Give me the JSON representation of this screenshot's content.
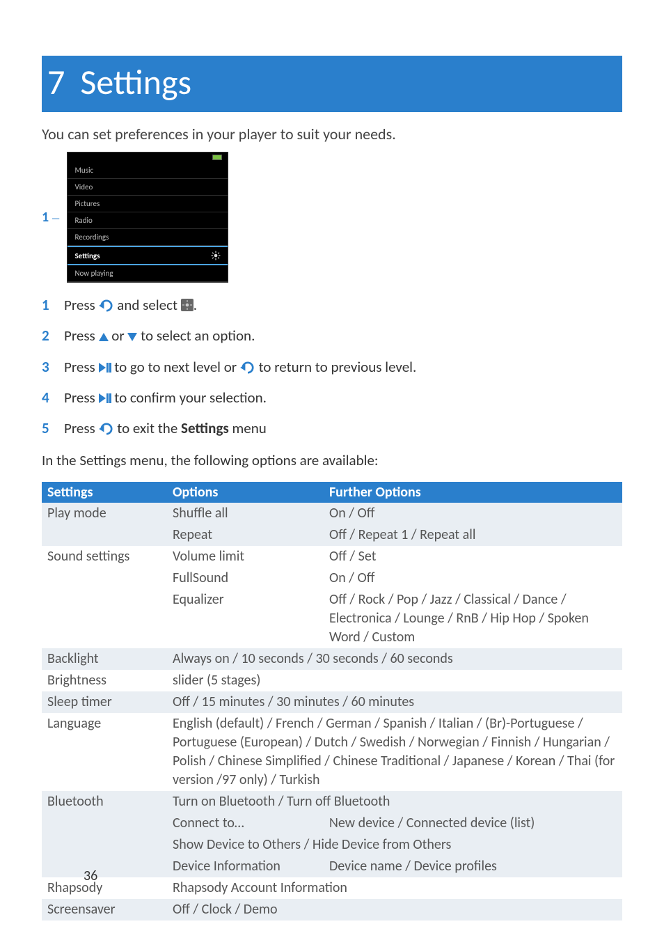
{
  "chapter": {
    "number": "7",
    "title": "Settings"
  },
  "intro": "You can set preferences in your player to suit your needs.",
  "device_menu": {
    "marker": "1",
    "items": [
      "Music",
      "Video",
      "Pictures",
      "Radio",
      "Recordings"
    ],
    "selected": "Settings",
    "after": [
      "Now playing"
    ]
  },
  "steps": [
    {
      "n": "1",
      "pre": "Press ",
      "mid": " and select ",
      "post": "."
    },
    {
      "n": "2",
      "pre": "Press ",
      "mid": " or ",
      "post": " to select an option."
    },
    {
      "n": "3",
      "pre": "Press ",
      "mid": " to go to next level or ",
      "post": " to return to previous level."
    },
    {
      "n": "4",
      "pre": "Press ",
      "post": " to confirm your selection."
    },
    {
      "n": "5",
      "pre": "Press ",
      "mid": " to exit the ",
      "bold": "Settings",
      "post": " menu"
    }
  ],
  "sub_intro": "In the Settings menu, the following options are available:",
  "table": {
    "headers": [
      "Settings",
      "Options",
      "Further Options"
    ],
    "header_bg": "#2a7fcc",
    "header_fg": "#ffffff",
    "shade_bg": "#e9eef3",
    "text_color": "#555555",
    "rows": [
      {
        "shade": true,
        "c1": "Play mode",
        "c2": "Shuffle all",
        "c3": "On / Off"
      },
      {
        "shade": true,
        "c1": "",
        "c2": "Repeat",
        "c3": "Off / Repeat 1 / Repeat all"
      },
      {
        "shade": false,
        "c1": "Sound settings",
        "c2": "Volume limit",
        "c3": "Off / Set"
      },
      {
        "shade": false,
        "c1": "",
        "c2": "FullSound",
        "c3": "On / Off"
      },
      {
        "shade": false,
        "c1": "",
        "c2": "Equalizer",
        "c3": "Off / Rock / Pop / Jazz / Classical / Dance / Electronica / Lounge / RnB / Hip Hop / Spoken Word / Custom"
      },
      {
        "shade": true,
        "c1": "Backlight",
        "span23": "Always on / 10 seconds / 30 seconds / 60 seconds"
      },
      {
        "shade": false,
        "c1": "Brightness",
        "span23": "slider (5 stages)"
      },
      {
        "shade": true,
        "c1": "Sleep timer",
        "span23": "Off / 15 minutes / 30 minutes / 60 minutes"
      },
      {
        "shade": false,
        "c1": "Language",
        "span23": "English (default) / French / German / Spanish / Italian / (Br)-Portuguese / Portuguese (European) / Dutch / Swedish / Norwegian / Finnish / Hungarian / Polish / Chinese Simplified / Chinese Traditional / Japanese / Korean / Thai (for version /97 only) / Turkish"
      },
      {
        "shade": true,
        "c1": "Bluetooth",
        "span23": "Turn on Bluetooth / Turn off Bluetooth"
      },
      {
        "shade": true,
        "c1": "",
        "c2": "Connect to…",
        "c3": "New device / Connected device (list)"
      },
      {
        "shade": true,
        "c1": "",
        "span23": "Show Device to Others / Hide Device from Others"
      },
      {
        "shade": true,
        "c1": "",
        "c2": "Device Information",
        "c3": "Device name / Device profiles"
      },
      {
        "shade": false,
        "c1": "Rhapsody",
        "span23": "Rhapsody Account Information"
      },
      {
        "shade": true,
        "c1": "Screensaver",
        "span23": "Off / Clock / Demo"
      }
    ]
  },
  "page_number": "36",
  "colors": {
    "brand": "#2a7fcc",
    "text": "#333333"
  }
}
